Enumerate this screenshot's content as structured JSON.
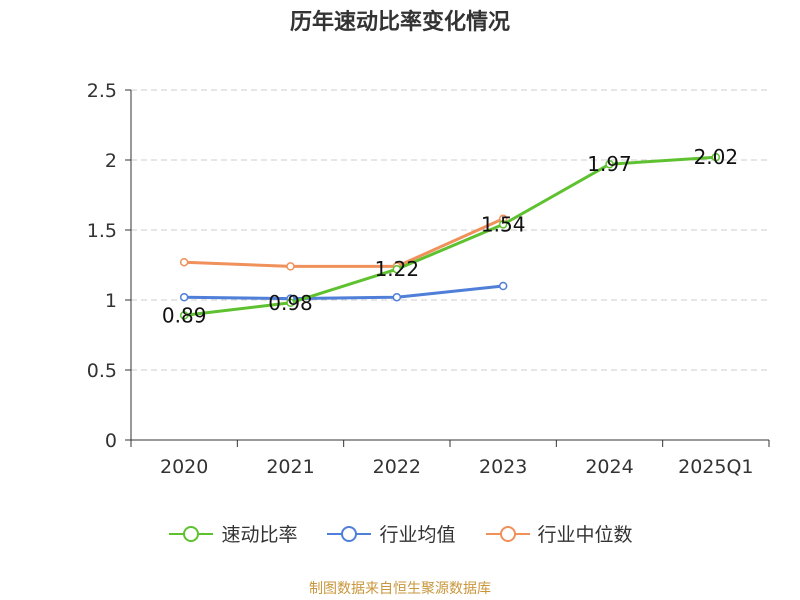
{
  "chart_data": {
    "type": "line",
    "title": "历年速动比率变化情况",
    "categories": [
      "2020",
      "2021",
      "2022",
      "2023",
      "2024",
      "2025Q1"
    ],
    "series": [
      {
        "name": "速动比率",
        "color": "#5ec12f",
        "values": [
          0.89,
          0.98,
          1.22,
          1.54,
          1.97,
          2.02
        ],
        "labels": [
          "0.89",
          "0.98",
          "1.22",
          "1.54",
          "1.97",
          "2.02"
        ]
      },
      {
        "name": "行业均值",
        "color": "#4f7fd8",
        "values": [
          1.02,
          1.01,
          1.02,
          1.1,
          null,
          null
        ]
      },
      {
        "name": "行业中位数",
        "color": "#f0905a",
        "values": [
          1.27,
          1.24,
          1.24,
          1.58,
          null,
          null
        ]
      }
    ],
    "ylim": [
      0,
      2.5
    ],
    "yticks": [
      "0",
      "0.5",
      "1",
      "1.5",
      "2",
      "2.5"
    ],
    "grid": true,
    "legend": "bottom"
  },
  "source": {
    "text": "制图数据来自恒生聚源数据库",
    "color": "#c9963b"
  }
}
